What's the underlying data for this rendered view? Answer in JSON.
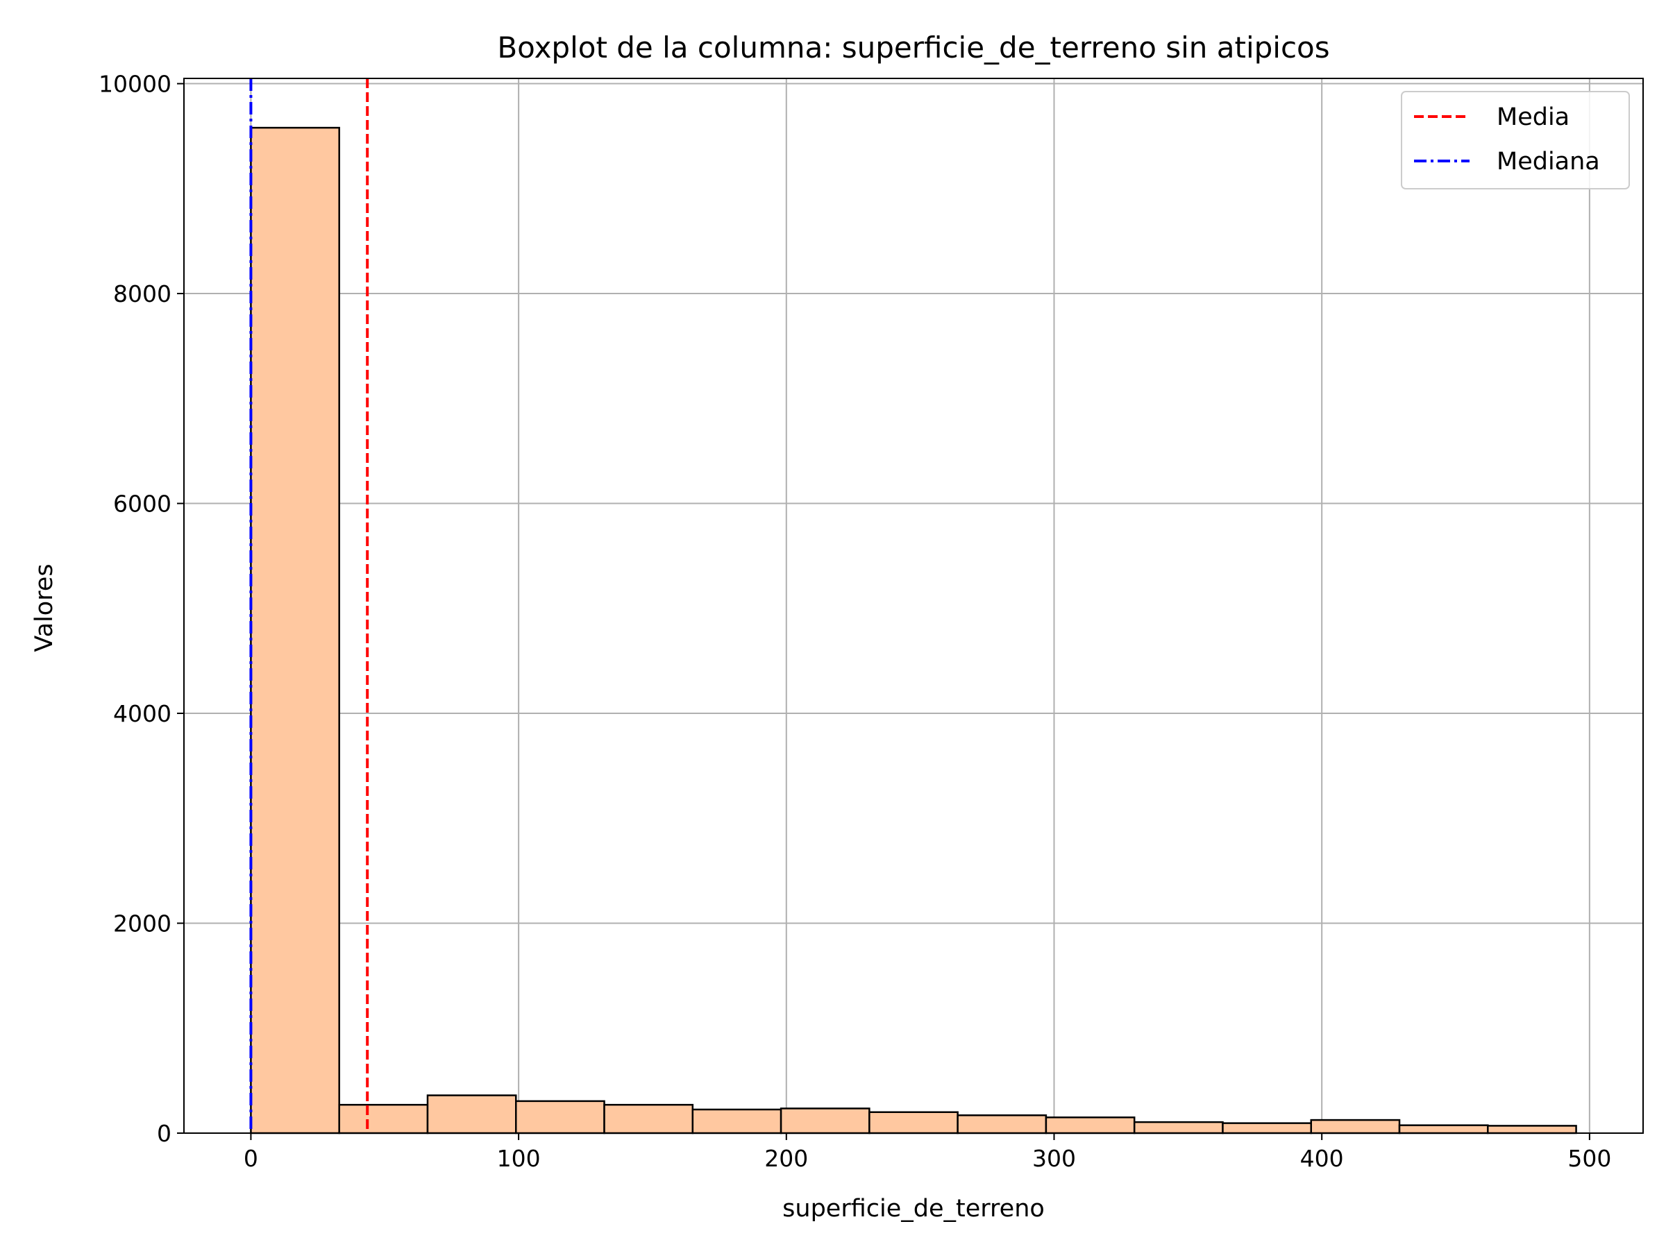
{
  "chart_data": {
    "type": "bar",
    "subtype": "histogram",
    "title": "Boxplot de la columna: superficie_de_terreno sin atipicos",
    "xlabel": "superficie_de_terreno",
    "ylabel": "Valores",
    "xlim": [
      -25,
      520
    ],
    "ylim": [
      0,
      10050
    ],
    "x_ticks": [
      0,
      100,
      200,
      300,
      400,
      500
    ],
    "y_ticks": [
      0,
      2000,
      4000,
      6000,
      8000,
      10000
    ],
    "grid": true,
    "bins": [
      {
        "x0": 0,
        "x1": 33,
        "value": 9580
      },
      {
        "x0": 33,
        "x1": 66,
        "value": 270
      },
      {
        "x0": 66,
        "x1": 99,
        "value": 360
      },
      {
        "x0": 99,
        "x1": 132,
        "value": 305
      },
      {
        "x0": 132,
        "x1": 165,
        "value": 270
      },
      {
        "x0": 165,
        "x1": 198,
        "value": 225
      },
      {
        "x0": 198,
        "x1": 231,
        "value": 235
      },
      {
        "x0": 231,
        "x1": 264,
        "value": 200
      },
      {
        "x0": 264,
        "x1": 297,
        "value": 170
      },
      {
        "x0": 297,
        "x1": 330,
        "value": 150
      },
      {
        "x0": 330,
        "x1": 363,
        "value": 105
      },
      {
        "x0": 363,
        "x1": 396,
        "value": 95
      },
      {
        "x0": 396,
        "x1": 429,
        "value": 125
      },
      {
        "x0": 429,
        "x1": 462,
        "value": 75
      },
      {
        "x0": 462,
        "x1": 495,
        "value": 70
      }
    ],
    "bar_color": "#ffc8a0",
    "edge_color": "#000000",
    "reference_lines": [
      {
        "name": "Media",
        "x": 43.5,
        "color": "#ff0000",
        "style": "dashed"
      },
      {
        "name": "Mediana",
        "x": 0,
        "color": "#0000ff",
        "style": "dashdot"
      }
    ],
    "legend": {
      "position": "top-right",
      "entries": [
        "Media",
        "Mediana"
      ]
    }
  }
}
